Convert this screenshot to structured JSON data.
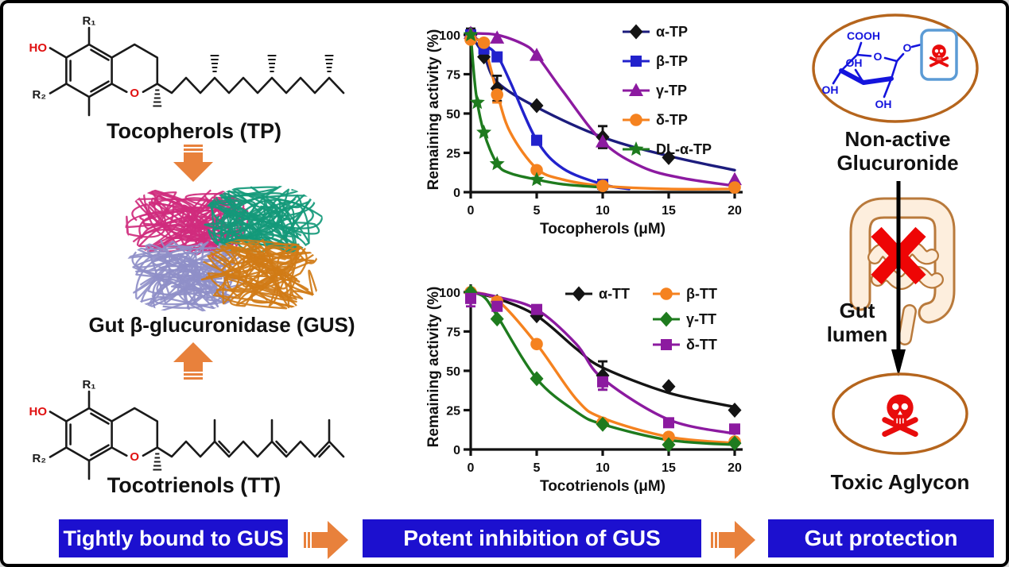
{
  "panels": {
    "left": {
      "tocopherols_caption": "Tocopherols (TP)",
      "gus_caption": "Gut β-glucuronidase (GUS)",
      "tocotrienols_caption": "Tocotrienols (TT)",
      "molecule_labels": {
        "ho": "HO",
        "r1": "R₁",
        "r2": "R₂",
        "ring_o": "O"
      }
    },
    "right": {
      "nonactive_line1": "Non-active",
      "nonactive_line2": "Glucuronide",
      "gut_lumen_line1": "Gut",
      "gut_lumen_line2": "lumen",
      "toxic_caption": "Toxic Aglycon",
      "sugar_labels": {
        "cooh": "COOH",
        "ring_o": "O",
        "link_o": "O",
        "oh_top": "OH",
        "oh_left": "OH",
        "oh_bottom": "OH"
      }
    },
    "banners": {
      "step1": "Tightly bound to GUS",
      "step2": "Potent inhibition of GUS",
      "step3": "Gut protection"
    },
    "colors": {
      "banner_blue": "#1c10cf",
      "arrow_orange": "#e8813c",
      "skull_red": "#e80c0c",
      "ellipse_brown": "#b5651d",
      "label_red": "#e01010",
      "sugar_blue": "#1414dd",
      "intestine_outline": "#b97a3c",
      "intestine_fill": "#fdeedd",
      "cross_red": "#ee0505",
      "box_blue": "#5b9bd5"
    }
  },
  "chart_data": [
    {
      "type": "scatter",
      "title": "",
      "xlabel": "Tocopherols (μM)",
      "ylabel": "Remaining activity (%)",
      "xlim": [
        0,
        20
      ],
      "ylim": [
        0,
        105
      ],
      "xticks": [
        0,
        5,
        10,
        15,
        20
      ],
      "yticks": [
        0,
        25,
        50,
        75,
        100
      ],
      "grid": false,
      "legend_position": "top-right",
      "series": [
        {
          "name": "α-TP",
          "marker": "diamond",
          "color": "#141414",
          "line_color": "#1c1c7d",
          "points": [
            [
              0,
              100
            ],
            [
              1,
              86
            ],
            [
              2,
              66
            ],
            [
              5,
              55
            ],
            [
              10,
              35
            ],
            [
              15,
              22
            ]
          ],
          "error_bars": [
            [
              0,
              4
            ],
            [
              2,
              8
            ],
            [
              10,
              7
            ]
          ],
          "curve": [
            [
              0,
              100
            ],
            [
              1,
              87
            ],
            [
              2,
              70
            ],
            [
              5,
              54
            ],
            [
              10,
              35
            ],
            [
              15,
              23
            ],
            [
              20,
              14
            ]
          ]
        },
        {
          "name": "β-TP",
          "marker": "square",
          "color": "#2222cc",
          "points": [
            [
              0,
              100
            ],
            [
              1,
              91
            ],
            [
              2,
              86
            ],
            [
              5,
              33
            ],
            [
              10,
              5
            ]
          ],
          "error_bars": [],
          "curve": [
            [
              0,
              100
            ],
            [
              1,
              94
            ],
            [
              2,
              87
            ],
            [
              3,
              70
            ],
            [
              5,
              33
            ],
            [
              7,
              15
            ],
            [
              10,
              5
            ],
            [
              12,
              2
            ]
          ]
        },
        {
          "name": "γ-TP",
          "marker": "triangle",
          "color": "#8c1aa0",
          "points": [
            [
              0,
              101
            ],
            [
              2,
              98
            ],
            [
              5,
              87
            ],
            [
              10,
              32
            ],
            [
              20,
              8
            ]
          ],
          "error_bars": [],
          "curve": [
            [
              0,
              101
            ],
            [
              2,
              100
            ],
            [
              4,
              94
            ],
            [
              5,
              87
            ],
            [
              7,
              64
            ],
            [
              10,
              32
            ],
            [
              13,
              16
            ],
            [
              16,
              9
            ],
            [
              20,
              4
            ]
          ]
        },
        {
          "name": "δ-TP",
          "marker": "circle",
          "color": "#f5821f",
          "points": [
            [
              0,
              97
            ],
            [
              1,
              95
            ],
            [
              2,
              62
            ],
            [
              5,
              14
            ],
            [
              10,
              4
            ],
            [
              20,
              3
            ]
          ],
          "error_bars": [
            [
              2,
              5
            ]
          ],
          "curve": [
            [
              0,
              98
            ],
            [
              1,
              93
            ],
            [
              2,
              63
            ],
            [
              3,
              38
            ],
            [
              5,
              15
            ],
            [
              7,
              8
            ],
            [
              10,
              4
            ],
            [
              15,
              2
            ],
            [
              20,
              2
            ]
          ]
        },
        {
          "name": "DL-α-TP",
          "marker": "star",
          "color": "#1e7b1e",
          "points": [
            [
              0,
              100
            ],
            [
              0.5,
              57
            ],
            [
              1,
              38
            ],
            [
              2,
              18
            ],
            [
              5,
              8
            ]
          ],
          "error_bars": [],
          "curve": [
            [
              0,
              100
            ],
            [
              0.4,
              63
            ],
            [
              1,
              38
            ],
            [
              2,
              18
            ],
            [
              3,
              12
            ],
            [
              5,
              8
            ],
            [
              7,
              5
            ],
            [
              10,
              3
            ]
          ]
        }
      ]
    },
    {
      "type": "scatter",
      "title": "",
      "xlabel": "Tocotrienols (μM)",
      "ylabel": "Remaining activity (%)",
      "xlim": [
        0,
        20
      ],
      "ylim": [
        0,
        105
      ],
      "xticks": [
        0,
        5,
        10,
        15,
        20
      ],
      "yticks": [
        0,
        25,
        50,
        75,
        100
      ],
      "grid": false,
      "legend_position": "top-right",
      "series": [
        {
          "name": "α-TT",
          "marker": "diamond",
          "color": "#141414",
          "points": [
            [
              0,
              100
            ],
            [
              2,
              94
            ],
            [
              5,
              85
            ],
            [
              10,
              47
            ],
            [
              15,
              40
            ],
            [
              20,
              25
            ]
          ],
          "error_bars": [
            [
              10,
              9
            ]
          ],
          "curve": [
            [
              0,
              100
            ],
            [
              2,
              96
            ],
            [
              5,
              85
            ],
            [
              8,
              64
            ],
            [
              10,
              52
            ],
            [
              15,
              36
            ],
            [
              20,
              27
            ]
          ]
        },
        {
          "name": "β-TT",
          "marker": "circle",
          "color": "#f5821f",
          "points": [
            [
              0,
              100
            ],
            [
              2,
              94
            ],
            [
              5,
              67
            ],
            [
              10,
              17
            ],
            [
              15,
              8
            ],
            [
              20,
              5
            ]
          ],
          "error_bars": [],
          "curve": [
            [
              0,
              100
            ],
            [
              2,
              95
            ],
            [
              5,
              67
            ],
            [
              8,
              32
            ],
            [
              10,
              20
            ],
            [
              15,
              8
            ],
            [
              20,
              4
            ]
          ]
        },
        {
          "name": "γ-TT",
          "marker": "diamond",
          "color": "#1e7b1e",
          "points": [
            [
              0,
              100
            ],
            [
              2,
              83
            ],
            [
              5,
              45
            ],
            [
              10,
              16
            ],
            [
              15,
              3
            ],
            [
              20,
              4
            ]
          ],
          "error_bars": [],
          "curve": [
            [
              0,
              100
            ],
            [
              1,
              97
            ],
            [
              2,
              85
            ],
            [
              5,
              45
            ],
            [
              8,
              24
            ],
            [
              10,
              16
            ],
            [
              15,
              6
            ],
            [
              20,
              3
            ]
          ]
        },
        {
          "name": "δ-TT",
          "marker": "square",
          "color": "#8c1aa0",
          "points": [
            [
              0,
              96
            ],
            [
              2,
              91
            ],
            [
              5,
              89
            ],
            [
              10,
              43
            ],
            [
              15,
              17
            ],
            [
              20,
              13
            ]
          ],
          "error_bars": [
            [
              0,
              5
            ],
            [
              10,
              5
            ]
          ],
          "curve": [
            [
              0,
              100
            ],
            [
              2,
              97
            ],
            [
              5,
              89
            ],
            [
              8,
              67
            ],
            [
              10,
              45
            ],
            [
              15,
              19
            ],
            [
              20,
              10
            ]
          ]
        }
      ]
    }
  ]
}
